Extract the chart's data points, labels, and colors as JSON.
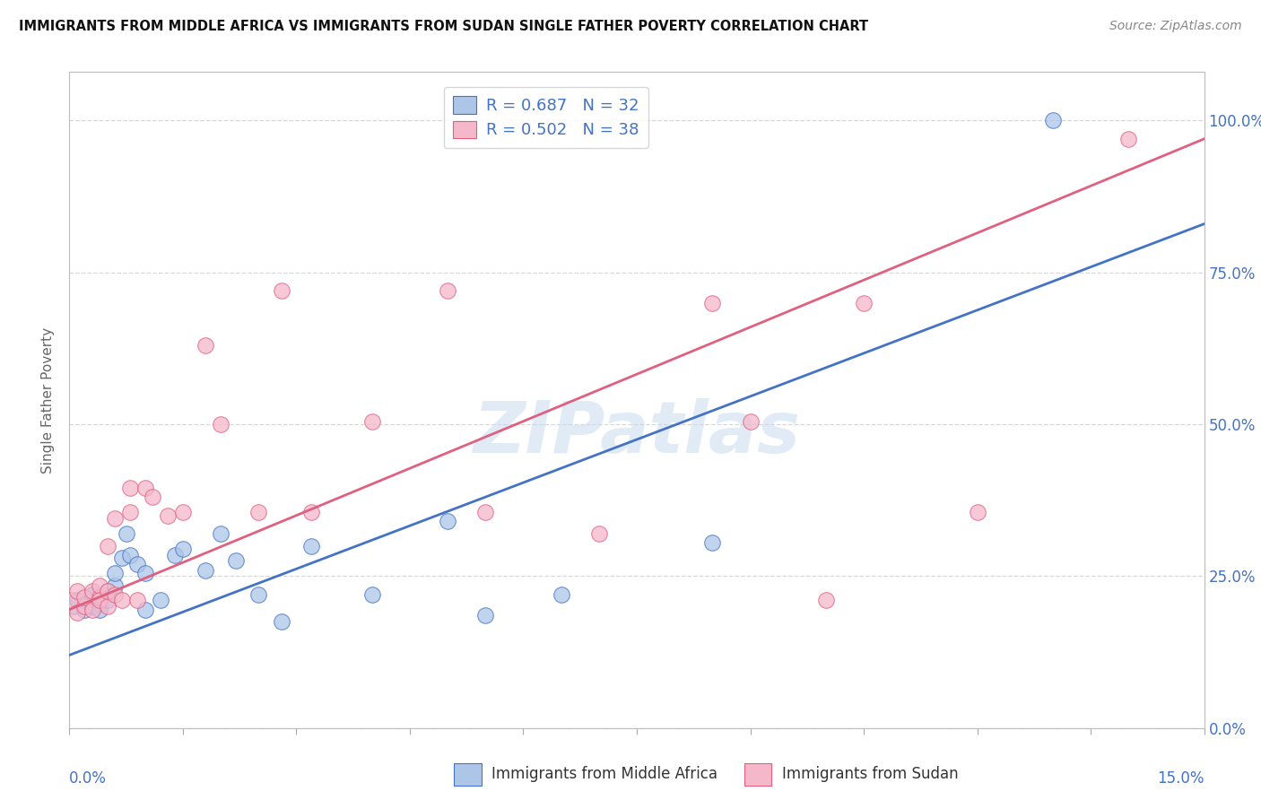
{
  "title": "IMMIGRANTS FROM MIDDLE AFRICA VS IMMIGRANTS FROM SUDAN SINGLE FATHER POVERTY CORRELATION CHART",
  "source": "Source: ZipAtlas.com",
  "ylabel": "Single Father Poverty",
  "watermark": "ZIPatlas",
  "legend_label1": "Immigrants from Middle Africa",
  "legend_label2": "Immigrants from Sudan",
  "R1": 0.687,
  "N1": 32,
  "R2": 0.502,
  "N2": 38,
  "color_blue": "#adc6e8",
  "color_pink": "#f5b8cb",
  "line_color_blue": "#4472c4",
  "line_color_pink": "#e06080",
  "text_color_blue": "#4472c4",
  "text_color_dark": "#333333",
  "background_color": "#ffffff",
  "grid_color": "#d8d8d8",
  "blue_points_x": [
    0.0005,
    0.001,
    0.002,
    0.003,
    0.003,
    0.004,
    0.004,
    0.005,
    0.005,
    0.006,
    0.006,
    0.007,
    0.0075,
    0.008,
    0.009,
    0.01,
    0.01,
    0.012,
    0.014,
    0.015,
    0.018,
    0.02,
    0.022,
    0.025,
    0.028,
    0.032,
    0.04,
    0.05,
    0.055,
    0.065,
    0.085,
    0.13
  ],
  "blue_points_y": [
    0.2,
    0.21,
    0.195,
    0.2,
    0.22,
    0.205,
    0.195,
    0.21,
    0.225,
    0.235,
    0.255,
    0.28,
    0.32,
    0.285,
    0.27,
    0.195,
    0.255,
    0.21,
    0.285,
    0.295,
    0.26,
    0.32,
    0.275,
    0.22,
    0.175,
    0.3,
    0.22,
    0.34,
    0.185,
    0.22,
    0.305,
    1.0
  ],
  "pink_points_x": [
    0.0002,
    0.001,
    0.001,
    0.002,
    0.002,
    0.003,
    0.003,
    0.004,
    0.004,
    0.004,
    0.005,
    0.005,
    0.005,
    0.006,
    0.006,
    0.007,
    0.008,
    0.008,
    0.009,
    0.01,
    0.011,
    0.013,
    0.015,
    0.018,
    0.02,
    0.025,
    0.028,
    0.032,
    0.04,
    0.05,
    0.055,
    0.07,
    0.085,
    0.09,
    0.1,
    0.105,
    0.12,
    0.14
  ],
  "pink_points_y": [
    0.21,
    0.19,
    0.225,
    0.2,
    0.215,
    0.195,
    0.225,
    0.215,
    0.235,
    0.21,
    0.2,
    0.225,
    0.3,
    0.345,
    0.22,
    0.21,
    0.395,
    0.355,
    0.21,
    0.395,
    0.38,
    0.35,
    0.355,
    0.63,
    0.5,
    0.355,
    0.72,
    0.355,
    0.505,
    0.72,
    0.355,
    0.32,
    0.7,
    0.505,
    0.21,
    0.7,
    0.355,
    0.97
  ],
  "xmin": 0.0,
  "xmax": 0.15,
  "ymin": 0.0,
  "ymax": 1.08,
  "blue_line_x0": 0.0,
  "blue_line_y0": 0.12,
  "blue_line_x1": 0.15,
  "blue_line_y1": 0.83,
  "pink_line_x0": 0.0,
  "pink_line_y0": 0.195,
  "pink_line_x1": 0.15,
  "pink_line_y1": 0.97
}
